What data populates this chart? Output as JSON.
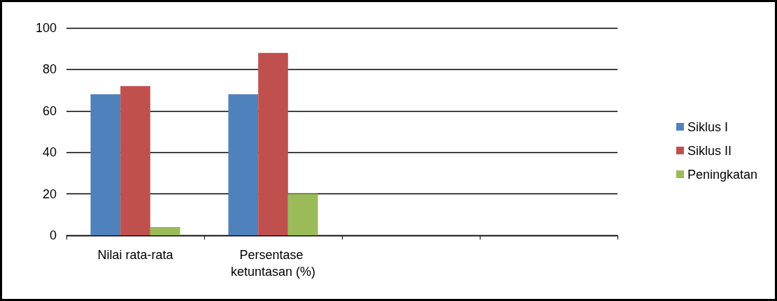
{
  "chart_data": {
    "type": "bar",
    "categories": [
      "Nilai rata-rata",
      "Persentase ketuntasan (%)",
      null,
      null
    ],
    "series": [
      {
        "name": "Siklus I",
        "color": "#4f81bd",
        "values": [
          68,
          68,
          null,
          null
        ]
      },
      {
        "name": "Siklus II",
        "color": "#c0504d",
        "values": [
          72,
          88,
          null,
          null
        ]
      },
      {
        "name": "Peningkatan",
        "color": "#9bbb59",
        "values": [
          4,
          20,
          null,
          null
        ]
      }
    ],
    "ylim": [
      0,
      100
    ],
    "yticks": [
      0,
      20,
      40,
      60,
      80,
      100
    ],
    "grid": "y",
    "legend": "right"
  }
}
